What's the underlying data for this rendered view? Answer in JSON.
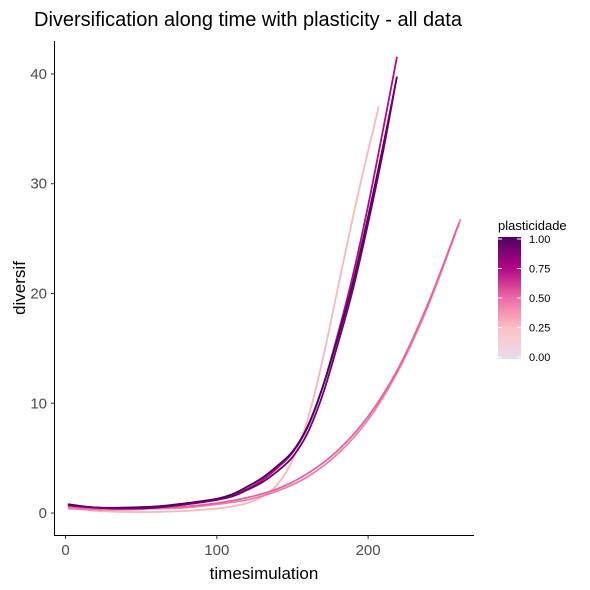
{
  "chart_data": {
    "type": "line",
    "title": "Diversification along time with plasticity - all data",
    "xlabel": "timesimulation",
    "ylabel": "diversif",
    "xlim": [
      -7,
      270
    ],
    "ylim": [
      -2,
      43
    ],
    "x_ticks": [
      0,
      100,
      200
    ],
    "x_tick_labels": [
      "0",
      "100",
      "200"
    ],
    "y_ticks": [
      0,
      10,
      20,
      30,
      40
    ],
    "y_tick_labels": [
      "0",
      "10",
      "20",
      "30",
      "40"
    ],
    "grid": false,
    "legend": {
      "title": "plasticidade",
      "position": "right",
      "type": "colorbar",
      "labels": [
        "1.00",
        "0.75",
        "0.50",
        "0.25",
        "0.00"
      ],
      "values": [
        1.0,
        0.75,
        0.5,
        0.25,
        0.0
      ],
      "gradient_colors": [
        "#e9dbec",
        "#fcc1c6",
        "#ed6aa5",
        "#b00584",
        "#4f0065"
      ]
    },
    "series": [
      {
        "plasticity": 0.25,
        "color": "#f9b7b8",
        "x": [
          2,
          20,
          40,
          60,
          80,
          100,
          110,
          120,
          130,
          140,
          150,
          160,
          170,
          180,
          190,
          200,
          207
        ],
        "y": [
          0.5,
          0.2,
          0.1,
          0.1,
          0.2,
          0.4,
          0.6,
          0.9,
          1.5,
          2.6,
          4.8,
          8.5,
          14,
          20.5,
          27,
          33,
          37
        ]
      },
      {
        "plasticity": 0.4,
        "color": "#ed7fab",
        "x": [
          2,
          20,
          40,
          60,
          80,
          100,
          120,
          140,
          160,
          180,
          200,
          220,
          240,
          261
        ],
        "y": [
          0.4,
          0.3,
          0.3,
          0.4,
          0.5,
          0.8,
          1.2,
          2.0,
          3.3,
          5.4,
          8.5,
          13.0,
          19.0,
          26.7
        ]
      },
      {
        "plasticity": 0.45,
        "color": "#e8619e",
        "x": [
          2,
          20,
          40,
          60,
          80,
          100,
          120,
          140,
          160,
          180,
          200,
          220,
          240,
          260
        ],
        "y": [
          0.6,
          0.4,
          0.4,
          0.5,
          0.6,
          0.9,
          1.4,
          2.2,
          3.6,
          5.7,
          8.8,
          13.2,
          19.2,
          26.4
        ]
      },
      {
        "plasticity": 0.75,
        "color": "#b8087f",
        "x": [
          2,
          20,
          40,
          60,
          80,
          100,
          110,
          120,
          130,
          140,
          150,
          160,
          170,
          180,
          190,
          200,
          210,
          219
        ],
        "y": [
          0.7,
          0.5,
          0.4,
          0.5,
          0.8,
          1.2,
          1.6,
          2.2,
          3.0,
          4.1,
          5.5,
          7.8,
          11.5,
          16.3,
          21.7,
          28.0,
          35.0,
          41.5
        ]
      },
      {
        "plasticity": 1.0,
        "color": "#4d0162",
        "x": [
          2,
          20,
          40,
          60,
          80,
          100,
          110,
          120,
          130,
          140,
          150,
          160,
          170,
          180,
          190,
          200,
          210,
          219
        ],
        "y": [
          0.8,
          0.5,
          0.5,
          0.6,
          0.9,
          1.3,
          1.7,
          2.4,
          3.2,
          4.3,
          5.6,
          7.9,
          11.5,
          16.0,
          21.0,
          27.0,
          33.5,
          39.7
        ]
      },
      {
        "plasticity": 0.9,
        "color": "#6e0070",
        "x": [
          2,
          20,
          40,
          60,
          80,
          100,
          110,
          120,
          130,
          140,
          150,
          160,
          170,
          180,
          190,
          200,
          210,
          218
        ],
        "y": [
          0.7,
          0.5,
          0.4,
          0.5,
          0.8,
          1.2,
          1.5,
          2.1,
          2.8,
          3.8,
          5.1,
          7.3,
          10.8,
          15.4,
          20.4,
          26.4,
          33.0,
          39.0
        ]
      }
    ]
  }
}
